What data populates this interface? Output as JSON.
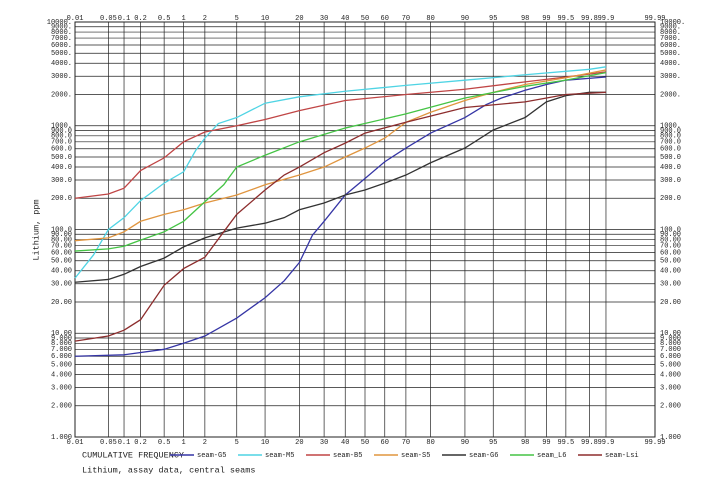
{
  "chart_data": {
    "type": "line",
    "x_label": "CUMULATIVE FREQUENCY",
    "y_label": "Lithium, ppm",
    "caption": "Lithium, assay data, central seams",
    "xscale": "probability",
    "yscale": "log",
    "grid": true,
    "legend": "bottom",
    "xlim": [
      0.01,
      99.99
    ],
    "xticks": [
      0.01,
      0.05,
      0.1,
      0.2,
      0.5,
      1,
      2,
      5,
      10,
      20,
      30,
      40,
      50,
      60,
      70,
      80,
      90,
      95,
      98,
      99,
      99.5,
      99.8,
      99.9,
      99.99
    ],
    "ylim": [
      1,
      10000
    ],
    "yticks": [
      {
        "value": 10000,
        "label": "10000."
      },
      {
        "value": 9000,
        "label": "9000."
      },
      {
        "value": 8000,
        "label": "8000."
      },
      {
        "value": 7000,
        "label": "7000."
      },
      {
        "value": 6000,
        "label": "6000."
      },
      {
        "value": 5000,
        "label": "5000."
      },
      {
        "value": 4000,
        "label": "4000."
      },
      {
        "value": 3000,
        "label": "3000."
      },
      {
        "value": 2000,
        "label": "2000."
      },
      {
        "value": 1000,
        "label": "1000."
      },
      {
        "value": 900,
        "label": "900.0"
      },
      {
        "value": 800,
        "label": "800.0"
      },
      {
        "value": 700,
        "label": "700.0"
      },
      {
        "value": 600,
        "label": "600.0"
      },
      {
        "value": 500,
        "label": "500.0"
      },
      {
        "value": 400,
        "label": "400.0"
      },
      {
        "value": 300,
        "label": "300.0"
      },
      {
        "value": 200,
        "label": "200.0"
      },
      {
        "value": 100,
        "label": "100.0"
      },
      {
        "value": 90,
        "label": "90.00"
      },
      {
        "value": 80,
        "label": "80.00"
      },
      {
        "value": 70,
        "label": "70.00"
      },
      {
        "value": 60,
        "label": "60.00"
      },
      {
        "value": 50,
        "label": "50.00"
      },
      {
        "value": 40,
        "label": "40.00"
      },
      {
        "value": 30,
        "label": "30.00"
      },
      {
        "value": 20,
        "label": "20.00"
      },
      {
        "value": 10,
        "label": "10.00"
      },
      {
        "value": 9,
        "label": "9.000"
      },
      {
        "value": 8,
        "label": "8.000"
      },
      {
        "value": 7,
        "label": "7.000"
      },
      {
        "value": 6,
        "label": "6.000"
      },
      {
        "value": 5,
        "label": "5.000"
      },
      {
        "value": 4,
        "label": "4.000"
      },
      {
        "value": 3,
        "label": "3.000"
      },
      {
        "value": 2,
        "label": "2.000"
      },
      {
        "value": 1,
        "label": "1.000"
      }
    ],
    "series": [
      {
        "name": "seam-G5",
        "color": "#3535a5",
        "x": [
          0.01,
          0.1,
          0.5,
          1,
          2,
          5,
          10,
          15,
          20,
          25,
          30,
          40,
          50,
          60,
          70,
          80,
          90,
          94,
          96,
          98,
          99,
          99.5,
          99.9
        ],
        "values": [
          6.0,
          6.2,
          7.0,
          8.0,
          9.4,
          14,
          22,
          32,
          48,
          88,
          120,
          215,
          310,
          450,
          610,
          850,
          1200,
          1600,
          1850,
          2200,
          2500,
          2750,
          2950
        ]
      },
      {
        "name": "seam-M5",
        "color": "#4fd4e4",
        "x": [
          0.01,
          0.025,
          0.05,
          0.1,
          0.2,
          0.5,
          1,
          1.5,
          2,
          3,
          5,
          10,
          20,
          40,
          70,
          90,
          98,
          99.8,
          99.9
        ],
        "values": [
          34,
          57,
          100,
          130,
          190,
          280,
          360,
          580,
          760,
          1050,
          1200,
          1650,
          1900,
          2150,
          2450,
          2750,
          3100,
          3500,
          3700
        ]
      },
      {
        "name": "seam-B5",
        "color": "#c04545",
        "x": [
          0.01,
          0.05,
          0.1,
          0.2,
          0.5,
          1,
          2,
          5,
          10,
          20,
          40,
          70,
          90,
          98,
          99.5,
          99.9
        ],
        "values": [
          200,
          220,
          250,
          370,
          490,
          700,
          870,
          1000,
          1150,
          1400,
          1750,
          2000,
          2250,
          2650,
          2950,
          3300
        ]
      },
      {
        "name": "seam-S5",
        "color": "#e0953f",
        "x": [
          0.01,
          0.05,
          0.1,
          0.2,
          0.5,
          1,
          2,
          5,
          10,
          20,
          30,
          40,
          50,
          60,
          70,
          80,
          90,
          95,
          98,
          99.5,
          99.9
        ],
        "values": [
          78,
          83,
          95,
          120,
          140,
          155,
          180,
          215,
          270,
          335,
          400,
          500,
          610,
          760,
          1080,
          1350,
          1750,
          2100,
          2500,
          2900,
          3450
        ]
      },
      {
        "name": "seam-G6",
        "color": "#333333",
        "x": [
          0.01,
          0.05,
          0.1,
          0.2,
          0.5,
          1,
          2,
          5,
          10,
          15,
          20,
          30,
          40,
          50,
          60,
          70,
          80,
          90,
          95,
          98,
          99,
          99.5,
          99.8,
          99.9
        ],
        "values": [
          31,
          33,
          37,
          44,
          53,
          68,
          83,
          103,
          115,
          130,
          155,
          180,
          215,
          240,
          280,
          335,
          440,
          610,
          910,
          1200,
          1700,
          1950,
          2100,
          2100
        ]
      },
      {
        "name": "seam_L6",
        "color": "#45c445",
        "x": [
          0.01,
          0.05,
          0.1,
          0.2,
          0.5,
          1,
          2,
          3.5,
          5,
          10,
          20,
          40,
          70,
          90,
          98,
          99.5,
          99.9
        ],
        "values": [
          62,
          65,
          69,
          79,
          95,
          120,
          185,
          270,
          400,
          520,
          700,
          950,
          1300,
          1850,
          2400,
          2750,
          3250
        ]
      },
      {
        "name": "seam-Lsi",
        "color": "#8d2d2d",
        "x": [
          0.01,
          0.05,
          0.1,
          0.2,
          0.5,
          1,
          2,
          3.5,
          5,
          10,
          15,
          20,
          30,
          40,
          50,
          70,
          90,
          98,
          99.5,
          99.9
        ],
        "values": [
          8.4,
          9.4,
          10.7,
          13.5,
          29,
          42,
          54,
          95,
          140,
          240,
          335,
          400,
          550,
          680,
          850,
          1080,
          1500,
          1700,
          2000,
          2100
        ]
      }
    ]
  }
}
